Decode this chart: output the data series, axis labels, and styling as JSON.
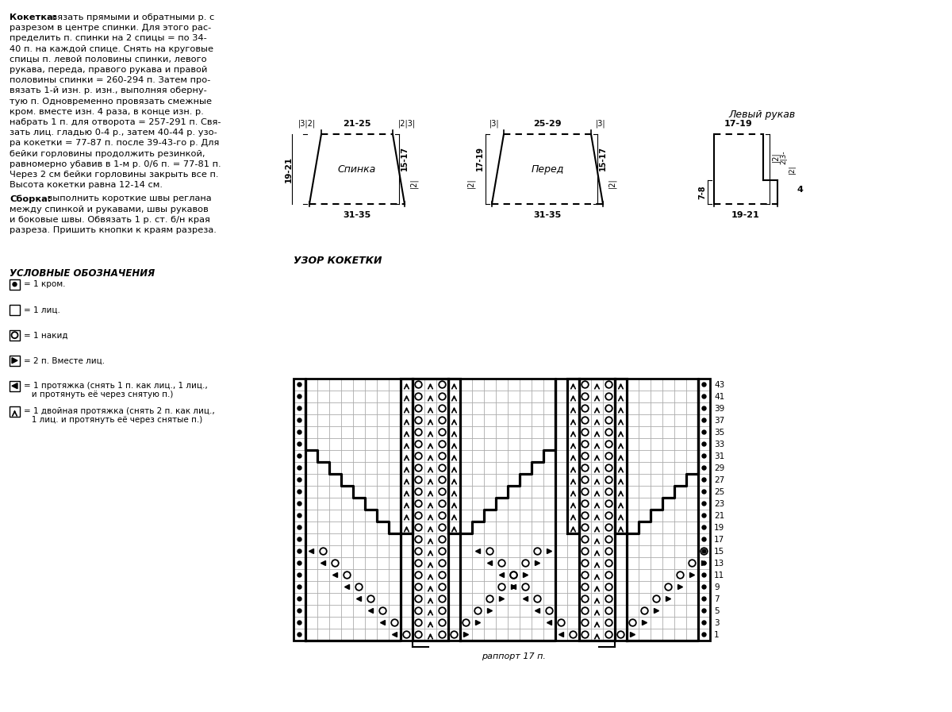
{
  "bg": "#ffffff",
  "text_kokетка_bold": "Кокетка:",
  "text_kokетка_body": " вязать прямыми и обратными р. с\nразрезом в центре спинки. Для этого рас-\nпределить п. спинки на 2 спицы = по 34-\n40 п. на каждой спице. Снять на круговые\nспицы п. левой половины спинки, левого\nрукава, переда, правого рукава и правой\nполовины спинки = 260-294 п. Затем про-\nвязать 1-й изн. р. изн., выполняя оберну-\nтую п. Одновременно провязать смежные\nкром. вместе изн. 4 раза, в конце изн. р.\nнабрать 1 п. для отворота = 257-291 п. Свя-\nзать лиц. гладью 0-4 р., затем 40-44 р. узо-\nра кокетки = 77-87 п. после 39-43-го р. Для\nбейки горловины продолжить резинкой,\nравномерно убавив в 1-м р. 0/6 п. = 77-81 п.\nЧерез 2 см бейки горловины закрыть все п.\nВысота кокетки равна 12-14 см.",
  "text_сборка_bold": "Сборка:",
  "text_сборка_body": " выполнить короткие швы реглана\nмежду спинкой и рукавами, швы рукавов\nи боковые швы. Обвязать 1 р. ст. б/н края\nразреза. Пришить кнопки к краям разреза.",
  "legend_title": "УСЛОВНЫЕ ОБОЗНАЧЕНИЯ",
  "legend": [
    "= 1 кром.",
    "= 1 лиц.",
    "= 1 накид",
    "= 2 п. Вместе лиц.",
    "= 1 протяжка (снять 1 п. как лиц., 1 лиц.,\n   и протянуть её через снятую п.)",
    "= 1 двойная протяжка (снять 2 п. как лиц.,\n   1 лиц. и протянуть её через снятые п.)"
  ],
  "pattern_title": "УЗОР КОКЕТКИ",
  "rapport_text": "раппорт 17 п.",
  "row_labels": [
    1,
    3,
    5,
    7,
    9,
    11,
    13,
    15,
    17,
    19,
    21,
    23,
    25,
    27,
    29,
    31,
    33,
    35,
    37,
    39,
    41,
    43
  ],
  "spinка_label": "Спинка",
  "pered_label": "Перед",
  "rukav_label": "Левый рукав"
}
